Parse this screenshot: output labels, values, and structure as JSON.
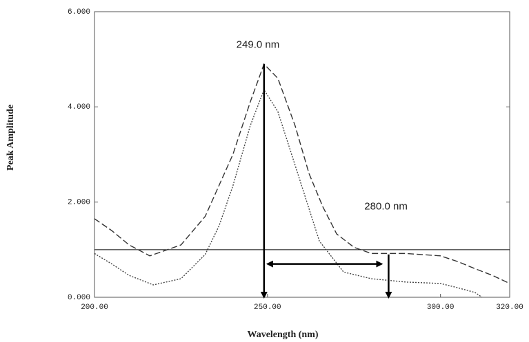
{
  "chart_data": {
    "type": "line",
    "xlabel": "Wavelength (nm)",
    "ylabel": "Peak Amplitude",
    "xlim": [
      200,
      320
    ],
    "ylim": [
      0,
      6
    ],
    "xticks": [
      {
        "value": 200,
        "label": "200.00"
      },
      {
        "value": 250,
        "label": "250.00"
      },
      {
        "value": 300,
        "label": "300.00"
      },
      {
        "value": 320,
        "label": "320.00"
      }
    ],
    "yticks": [
      {
        "value": 0,
        "label": "0.000"
      },
      {
        "value": 2,
        "label": "2.000"
      },
      {
        "value": 4,
        "label": "4.000"
      },
      {
        "value": 6,
        "label": "6.000"
      }
    ],
    "series": [
      {
        "color": "#333333",
        "dash": "dashed",
        "x": [
          200,
          205,
          210,
          216,
          225,
          232,
          240,
          245,
          249,
          253,
          258,
          262,
          266,
          270,
          275,
          280,
          290,
          300,
          305,
          310,
          315,
          320
        ],
        "values": [
          1.65,
          1.4,
          1.1,
          0.87,
          1.1,
          1.7,
          3.0,
          4.1,
          4.9,
          4.6,
          3.6,
          2.6,
          1.9,
          1.33,
          1.05,
          0.92,
          0.92,
          0.87,
          0.75,
          0.6,
          0.46,
          0.29
        ]
      },
      {
        "color": "#444444",
        "dash": "dotted",
        "x": [
          200,
          205,
          210,
          217,
          225,
          232,
          236,
          240,
          245,
          249,
          253,
          258,
          265,
          272,
          280,
          290,
          300,
          305,
          310,
          312
        ],
        "values": [
          0.92,
          0.7,
          0.46,
          0.26,
          0.39,
          0.9,
          1.5,
          2.34,
          3.6,
          4.36,
          3.9,
          2.77,
          1.18,
          0.53,
          0.39,
          0.32,
          0.29,
          0.2,
          0.1,
          0
        ]
      }
    ],
    "hline": 1.0,
    "arrows": [
      {
        "x": [
          249,
          249
        ],
        "y": [
          4.9,
          0
        ]
      },
      {
        "x": [
          250,
          283
        ],
        "y": [
          0.7,
          0.7
        ],
        "both": true
      },
      {
        "x": [
          285,
          285
        ],
        "y": [
          0.9,
          0
        ]
      }
    ],
    "annotations": [
      {
        "text": "249.0 nm",
        "x": 241,
        "y": 5.3
      },
      {
        "text": "280.0 nm",
        "x": 278,
        "y": 1.9
      }
    ]
  }
}
